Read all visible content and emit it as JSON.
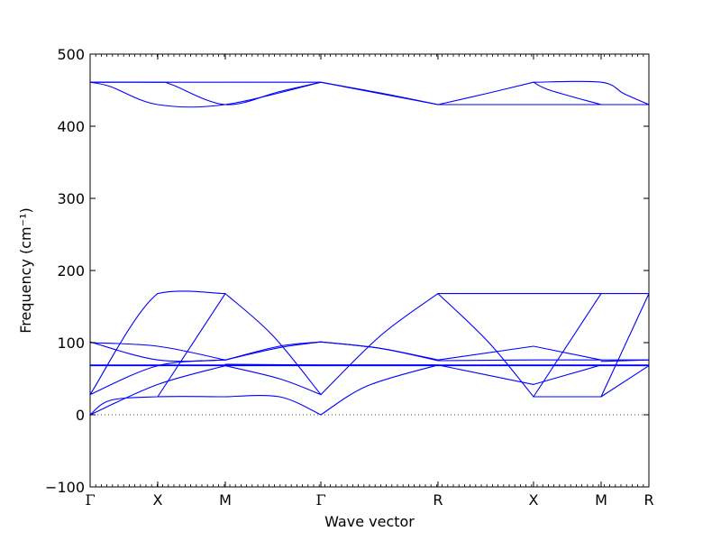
{
  "chart_data": {
    "type": "line",
    "title": "",
    "xlabel": "Wave vector",
    "ylabel": "Frequency (cm⁻¹)",
    "ylim": [
      -100,
      500
    ],
    "yticks": [
      -100,
      0,
      100,
      200,
      300,
      400,
      500
    ],
    "x_ticks": [
      {
        "label": "Γ",
        "pos": 0
      },
      {
        "label": "X",
        "pos": 1
      },
      {
        "label": "M",
        "pos": 2
      },
      {
        "label": "Γ",
        "pos": 3.414
      },
      {
        "label": "R",
        "pos": 5.146
      },
      {
        "label": "X",
        "pos": 6.56
      },
      {
        "label": "M",
        "pos": 7.56
      },
      {
        "label": "R",
        "pos": 8.267
      }
    ],
    "xlim": [
      0,
      8.267
    ],
    "zero_line": {
      "y": 0,
      "style": "dotted"
    },
    "line_color": "#0000ff",
    "grid": false,
    "series": [
      {
        "x": [
          0,
          1,
          1.2,
          2,
          2.8,
          3.414
        ],
        "y": [
          461,
          461,
          458,
          430,
          448,
          461
        ]
      },
      {
        "x": [
          0,
          0.3,
          1,
          2,
          3.414
        ],
        "y": [
          461,
          455,
          430,
          430,
          461
        ]
      },
      {
        "x": [
          0,
          2,
          3.414
        ],
        "y": [
          461,
          461,
          461
        ]
      },
      {
        "x": [
          3.414,
          4.3,
          5.146
        ],
        "y": [
          461,
          445,
          430
        ]
      },
      {
        "x": [
          3.414,
          4.3,
          5.146
        ],
        "y": [
          461,
          446,
          430
        ]
      },
      {
        "x": [
          5.146,
          5.85,
          6.56
        ],
        "y": [
          430,
          445,
          461
        ]
      },
      {
        "x": [
          5.146,
          6.56,
          7.56
        ],
        "y": [
          430,
          430,
          430
        ]
      },
      {
        "x": [
          6.56,
          6.8,
          7.56
        ],
        "y": [
          461,
          450,
          430
        ]
      },
      {
        "x": [
          6.56,
          7.56,
          7.9,
          8.267
        ],
        "y": [
          461,
          461,
          445,
          430
        ]
      },
      {
        "x": [
          7.56,
          8.267
        ],
        "y": [
          430,
          430
        ]
      },
      {
        "x": [
          0,
          1,
          2
        ],
        "y": [
          28,
          168,
          168
        ]
      },
      {
        "x": [
          0,
          0.3,
          1,
          2
        ],
        "y": [
          0,
          20,
          25,
          25
        ]
      },
      {
        "x": [
          0,
          1,
          2
        ],
        "y": [
          0,
          42,
          68
        ]
      },
      {
        "x": [
          0,
          1,
          2
        ],
        "y": [
          28,
          68,
          76
        ]
      },
      {
        "x": [
          0,
          1,
          2
        ],
        "y": [
          100,
          95,
          76
        ]
      },
      {
        "x": [
          0,
          1,
          2
        ],
        "y": [
          101,
          76,
          76
        ]
      },
      {
        "x": [
          0,
          8.267
        ],
        "y": [
          69,
          69
        ]
      },
      {
        "x": [
          0,
          8.267
        ],
        "y": [
          68,
          68
        ]
      },
      {
        "x": [
          1,
          2
        ],
        "y": [
          25,
          168
        ]
      },
      {
        "x": [
          2,
          2.8,
          3.414
        ],
        "y": [
          25,
          25,
          0
        ]
      },
      {
        "x": [
          2,
          2.7,
          3.414
        ],
        "y": [
          168,
          110,
          28
        ]
      },
      {
        "x": [
          2,
          2.8,
          3.414
        ],
        "y": [
          76,
          95,
          101
        ]
      },
      {
        "x": [
          2,
          2.8,
          3.414
        ],
        "y": [
          76,
          93,
          101
        ]
      },
      {
        "x": [
          2,
          2.8,
          3.414
        ],
        "y": [
          68,
          50,
          28
        ]
      },
      {
        "x": [
          2,
          3.414
        ],
        "y": [
          70,
          69
        ]
      },
      {
        "x": [
          3.414,
          4.1,
          5.146
        ],
        "y": [
          0,
          40,
          69
        ]
      },
      {
        "x": [
          3.414,
          4.3,
          5.146
        ],
        "y": [
          28,
          110,
          168
        ]
      },
      {
        "x": [
          3.414,
          4.3,
          5.146
        ],
        "y": [
          101,
          92,
          76
        ]
      },
      {
        "x": [
          3.414,
          4.3,
          5.146
        ],
        "y": [
          101,
          92,
          75
        ]
      },
      {
        "x": [
          3.414,
          5.146
        ],
        "y": [
          69,
          69
        ]
      },
      {
        "x": [
          5.146,
          6.56,
          7.56,
          8.267
        ],
        "y": [
          168,
          168,
          168,
          168
        ]
      },
      {
        "x": [
          5.146,
          5.9,
          6.56
        ],
        "y": [
          168,
          100,
          25
        ]
      },
      {
        "x": [
          5.146,
          6.56
        ],
        "y": [
          76,
          95
        ]
      },
      {
        "x": [
          5.146,
          6.56
        ],
        "y": [
          75,
          76
        ]
      },
      {
        "x": [
          5.146,
          6.56
        ],
        "y": [
          69,
          42
        ]
      },
      {
        "x": [
          6.56,
          7.56
        ],
        "y": [
          25,
          25
        ]
      },
      {
        "x": [
          6.56,
          7.56
        ],
        "y": [
          25,
          168
        ]
      },
      {
        "x": [
          6.56,
          7.56
        ],
        "y": [
          95,
          76
        ]
      },
      {
        "x": [
          6.56,
          7.56
        ],
        "y": [
          42,
          69
        ]
      },
      {
        "x": [
          6.56,
          7.56
        ],
        "y": [
          76,
          76
        ]
      },
      {
        "x": [
          7.56,
          8.267
        ],
        "y": [
          25,
          68
        ]
      },
      {
        "x": [
          7.56,
          8.267
        ],
        "y": [
          25,
          168
        ]
      },
      {
        "x": [
          7.56,
          8.267
        ],
        "y": [
          76,
          76
        ]
      },
      {
        "x": [
          7.56,
          8.267
        ],
        "y": [
          74,
          76
        ]
      }
    ]
  }
}
